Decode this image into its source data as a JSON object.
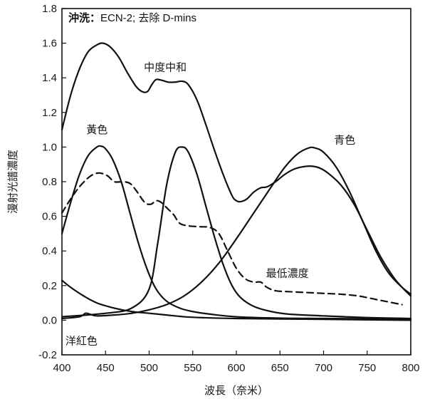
{
  "chart_data": {
    "type": "line",
    "title_prefix": "沖洗：",
    "title_rest": "ECN-2; 去除 D-mins",
    "xlabel": "波長（奈米）",
    "ylabel": "漫射光譜濃度",
    "xlim": [
      400,
      800
    ],
    "ylim": [
      -0.2,
      1.8
    ],
    "x_ticks": [
      400,
      450,
      500,
      550,
      600,
      650,
      700,
      750,
      800
    ],
    "y_ticks": [
      "-0.2",
      "0.0",
      "0.2",
      "0.4",
      "0.6",
      "0.8",
      "1.0",
      "1.2",
      "1.4",
      "1.6",
      "1.8"
    ],
    "grid": false,
    "series": [
      {
        "name": "中度中和",
        "dashed": false,
        "points": [
          [
            400,
            1.1
          ],
          [
            410,
            1.3
          ],
          [
            420,
            1.45
          ],
          [
            430,
            1.55
          ],
          [
            440,
            1.59
          ],
          [
            447,
            1.6
          ],
          [
            455,
            1.58
          ],
          [
            465,
            1.52
          ],
          [
            475,
            1.43
          ],
          [
            485,
            1.35
          ],
          [
            492,
            1.32
          ],
          [
            498,
            1.32
          ],
          [
            503,
            1.36
          ],
          [
            508,
            1.39
          ],
          [
            515,
            1.385
          ],
          [
            522,
            1.375
          ],
          [
            530,
            1.375
          ],
          [
            538,
            1.38
          ],
          [
            545,
            1.36
          ],
          [
            555,
            1.27
          ],
          [
            565,
            1.13
          ],
          [
            575,
            0.98
          ],
          [
            585,
            0.84
          ],
          [
            595,
            0.72
          ],
          [
            600,
            0.69
          ],
          [
            605,
            0.685
          ],
          [
            612,
            0.7
          ],
          [
            620,
            0.74
          ],
          [
            628,
            0.765
          ],
          [
            635,
            0.77
          ],
          [
            645,
            0.8
          ],
          [
            655,
            0.84
          ],
          [
            665,
            0.87
          ],
          [
            675,
            0.885
          ],
          [
            685,
            0.89
          ],
          [
            695,
            0.88
          ],
          [
            705,
            0.85
          ],
          [
            720,
            0.78
          ],
          [
            735,
            0.67
          ],
          [
            750,
            0.52
          ],
          [
            765,
            0.37
          ],
          [
            780,
            0.25
          ],
          [
            790,
            0.19
          ],
          [
            800,
            0.14
          ]
        ]
      },
      {
        "name": "黃色",
        "dashed": false,
        "points": [
          [
            400,
            0.5
          ],
          [
            410,
            0.68
          ],
          [
            420,
            0.84
          ],
          [
            430,
            0.95
          ],
          [
            440,
            1.0
          ],
          [
            445,
            1.005
          ],
          [
            450,
            0.99
          ],
          [
            458,
            0.93
          ],
          [
            468,
            0.8
          ],
          [
            478,
            0.62
          ],
          [
            488,
            0.44
          ],
          [
            498,
            0.29
          ],
          [
            508,
            0.18
          ],
          [
            520,
            0.11
          ],
          [
            535,
            0.07
          ],
          [
            550,
            0.05
          ],
          [
            570,
            0.035
          ],
          [
            600,
            0.02
          ],
          [
            650,
            0.012
          ],
          [
            700,
            0.01
          ],
          [
            750,
            0.008
          ],
          [
            800,
            0.005
          ]
        ]
      },
      {
        "name": "",
        "dashed": false,
        "points": [
          [
            400,
            0.02
          ],
          [
            450,
            0.04
          ],
          [
            480,
            0.07
          ],
          [
            500,
            0.18
          ],
          [
            510,
            0.45
          ],
          [
            520,
            0.78
          ],
          [
            530,
            0.97
          ],
          [
            538,
            1.0
          ],
          [
            545,
            0.97
          ],
          [
            555,
            0.84
          ],
          [
            565,
            0.66
          ],
          [
            575,
            0.48
          ],
          [
            585,
            0.32
          ],
          [
            595,
            0.2
          ],
          [
            605,
            0.13
          ],
          [
            620,
            0.08
          ],
          [
            640,
            0.05
          ],
          [
            660,
            0.035
          ],
          [
            700,
            0.025
          ],
          [
            750,
            0.015
          ],
          [
            800,
            0.01
          ]
        ]
      },
      {
        "name": "青色",
        "dashed": false,
        "points": [
          [
            400,
            0.01
          ],
          [
            420,
            0.02
          ],
          [
            427,
            0.04
          ],
          [
            432,
            0.035
          ],
          [
            440,
            0.025
          ],
          [
            460,
            0.03
          ],
          [
            480,
            0.04
          ],
          [
            500,
            0.06
          ],
          [
            520,
            0.09
          ],
          [
            540,
            0.14
          ],
          [
            560,
            0.22
          ],
          [
            580,
            0.33
          ],
          [
            600,
            0.47
          ],
          [
            620,
            0.62
          ],
          [
            640,
            0.77
          ],
          [
            655,
            0.88
          ],
          [
            670,
            0.96
          ],
          [
            683,
            0.995
          ],
          [
            690,
            0.995
          ],
          [
            700,
            0.97
          ],
          [
            715,
            0.88
          ],
          [
            730,
            0.74
          ],
          [
            745,
            0.57
          ],
          [
            760,
            0.4
          ],
          [
            775,
            0.27
          ],
          [
            790,
            0.19
          ],
          [
            800,
            0.15
          ]
        ]
      },
      {
        "name": "洋紅色",
        "dashed": false,
        "points": [
          [
            400,
            0.23
          ],
          [
            410,
            0.19
          ],
          [
            425,
            0.14
          ],
          [
            440,
            0.1
          ],
          [
            460,
            0.07
          ],
          [
            480,
            0.05
          ],
          [
            500,
            0.04
          ],
          [
            520,
            0.03
          ],
          [
            540,
            0.02
          ],
          [
            560,
            0.015
          ],
          [
            600,
            0.01
          ],
          [
            700,
            0.005
          ],
          [
            800,
            0.0
          ]
        ]
      },
      {
        "name": "最低濃度",
        "dashed": true,
        "points": [
          [
            400,
            0.62
          ],
          [
            410,
            0.7
          ],
          [
            420,
            0.77
          ],
          [
            432,
            0.83
          ],
          [
            442,
            0.85
          ],
          [
            452,
            0.835
          ],
          [
            460,
            0.8
          ],
          [
            470,
            0.8
          ],
          [
            478,
            0.79
          ],
          [
            485,
            0.75
          ],
          [
            495,
            0.68
          ],
          [
            502,
            0.67
          ],
          [
            508,
            0.69
          ],
          [
            514,
            0.68
          ],
          [
            520,
            0.65
          ],
          [
            528,
            0.61
          ],
          [
            535,
            0.56
          ],
          [
            545,
            0.545
          ],
          [
            558,
            0.54
          ],
          [
            570,
            0.535
          ],
          [
            580,
            0.5
          ],
          [
            590,
            0.4
          ],
          [
            600,
            0.3
          ],
          [
            610,
            0.24
          ],
          [
            620,
            0.22
          ],
          [
            628,
            0.22
          ],
          [
            635,
            0.19
          ],
          [
            645,
            0.17
          ],
          [
            660,
            0.165
          ],
          [
            680,
            0.16
          ],
          [
            700,
            0.155
          ],
          [
            720,
            0.15
          ],
          [
            740,
            0.14
          ],
          [
            760,
            0.12
          ],
          [
            775,
            0.105
          ],
          [
            790,
            0.09
          ]
        ]
      }
    ],
    "annotations": [
      {
        "text": "中度中和",
        "x": 494,
        "y": 1.44
      },
      {
        "text": "黃色",
        "x": 428,
        "y": 1.08
      },
      {
        "text": "青色",
        "x": 712,
        "y": 1.02
      },
      {
        "text": "最低濃度",
        "x": 634,
        "y": 0.25
      },
      {
        "text": "洋紅色",
        "x": 404,
        "y": -0.14
      }
    ]
  }
}
